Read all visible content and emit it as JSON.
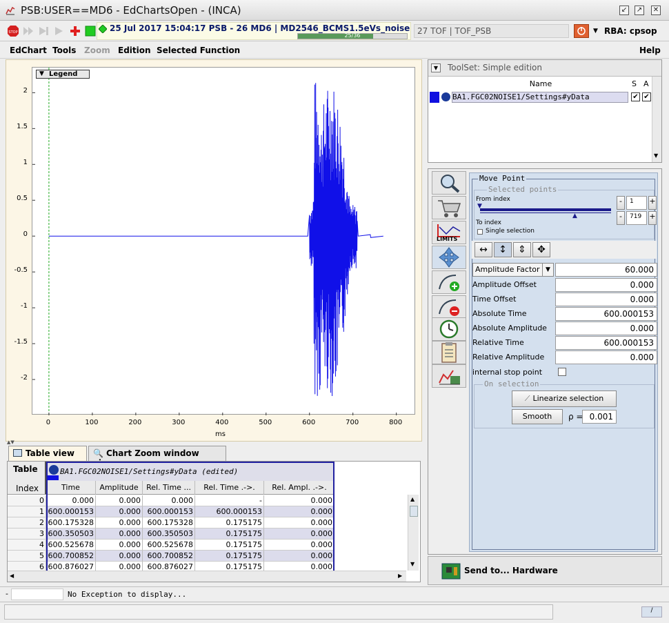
{
  "window": {
    "title": "PSB:USER==MD6 - EdChartsOpen - (INCA)"
  },
  "status": {
    "line": "25 Jul 2017  15:04:17  PSB - 26 MD6 | MD2546_BCMS1.5eVs_noise",
    "progress_label": "25/36",
    "progress_fraction": 0.69
  },
  "tof": {
    "label": "27 TOF | TOF_PSB"
  },
  "rba": {
    "label": "RBA: cpsop"
  },
  "menu": {
    "items": [
      "EdChart",
      "Tools",
      "Zoom",
      "Edition",
      "Selected Function"
    ],
    "help": "Help"
  },
  "chart_data": {
    "type": "line",
    "xlabel": "ms",
    "xlim": [
      -38,
      845
    ],
    "ylim": [
      -2.5,
      2.35
    ],
    "xticks": [
      0,
      100,
      200,
      300,
      400,
      500,
      600,
      700,
      800
    ],
    "yticks": [
      2,
      1.5,
      1,
      0.5,
      0,
      -0.5,
      -1,
      -1.5,
      -2
    ],
    "legend_label": "Legend",
    "series": [
      {
        "x_start": 0,
        "x_end": 810,
        "noise_start": 600,
        "noise_end": 710,
        "peak": 2.2,
        "trough": -2.25
      }
    ]
  },
  "tabs": {
    "table": "Table view",
    "zoom": "Chart Zoom window view"
  },
  "table": {
    "corner_top": "Table",
    "corner_bottom": "Index",
    "signal": "BA1.FGC02NOISE1/Settings#yData (edited)",
    "headers": [
      "Time",
      "Amplitude",
      "Rel. Time ...",
      "Rel. Time .->.",
      "Rel. Ampl. .->."
    ],
    "rows": [
      {
        "index": "0",
        "cells": [
          "0.000",
          "0.000",
          "0.000",
          "-",
          "0.000"
        ]
      },
      {
        "index": "1",
        "cells": [
          "600.000153",
          "0.000",
          "600.000153",
          "600.000153",
          "0.000"
        ]
      },
      {
        "index": "2",
        "cells": [
          "600.175328",
          "0.000",
          "600.175328",
          "0.175175",
          "0.000"
        ]
      },
      {
        "index": "3",
        "cells": [
          "600.350503",
          "0.000",
          "600.350503",
          "0.175175",
          "0.000"
        ]
      },
      {
        "index": "4",
        "cells": [
          "600.525678",
          "0.000",
          "600.525678",
          "0.175175",
          "0.000"
        ]
      },
      {
        "index": "5",
        "cells": [
          "600.700852",
          "0.000",
          "600.700852",
          "0.175175",
          "0.000"
        ]
      },
      {
        "index": "6",
        "cells": [
          "600.876027",
          "0.000",
          "600.876027",
          "0.175175",
          "0.000"
        ]
      }
    ]
  },
  "exception": {
    "text": "No Exception to display..."
  },
  "toolset": {
    "title": "ToolSet: Simple edition",
    "col_name": "Name",
    "col_s": "S",
    "col_a": "A",
    "signal": "BA1.FGC02NOISE1/Settings#yData"
  },
  "movepoint": {
    "title": "Move Point",
    "selected_points": "Selected points",
    "from_index_label": "From index",
    "from_index": "1",
    "to_index_label": "To index",
    "to_index": "719",
    "single_selection": "Single selection",
    "factor_select": "Amplitude Factor",
    "factor_value": "60.000",
    "fields": [
      {
        "label": "Amplitude Offset",
        "value": "0.000"
      },
      {
        "label": "Time Offset",
        "value": "0.000"
      },
      {
        "label": "Absolute Time",
        "value": "600.000153"
      },
      {
        "label": "Absolute Amplitude",
        "value": "0.000"
      },
      {
        "label": "Relative Time",
        "value": "600.000153"
      },
      {
        "label": "Relative Amplitude",
        "value": "0.000"
      }
    ],
    "internal_stop": "internal stop point",
    "on_selection": "On selection",
    "linearize": "Linearize selection",
    "smooth": "Smooth",
    "rho_label": "ρ =",
    "rho_value": "0.001"
  },
  "side_tools": {
    "limits_label": "LIMITS"
  },
  "send": {
    "label": "Send to... Hardware"
  }
}
